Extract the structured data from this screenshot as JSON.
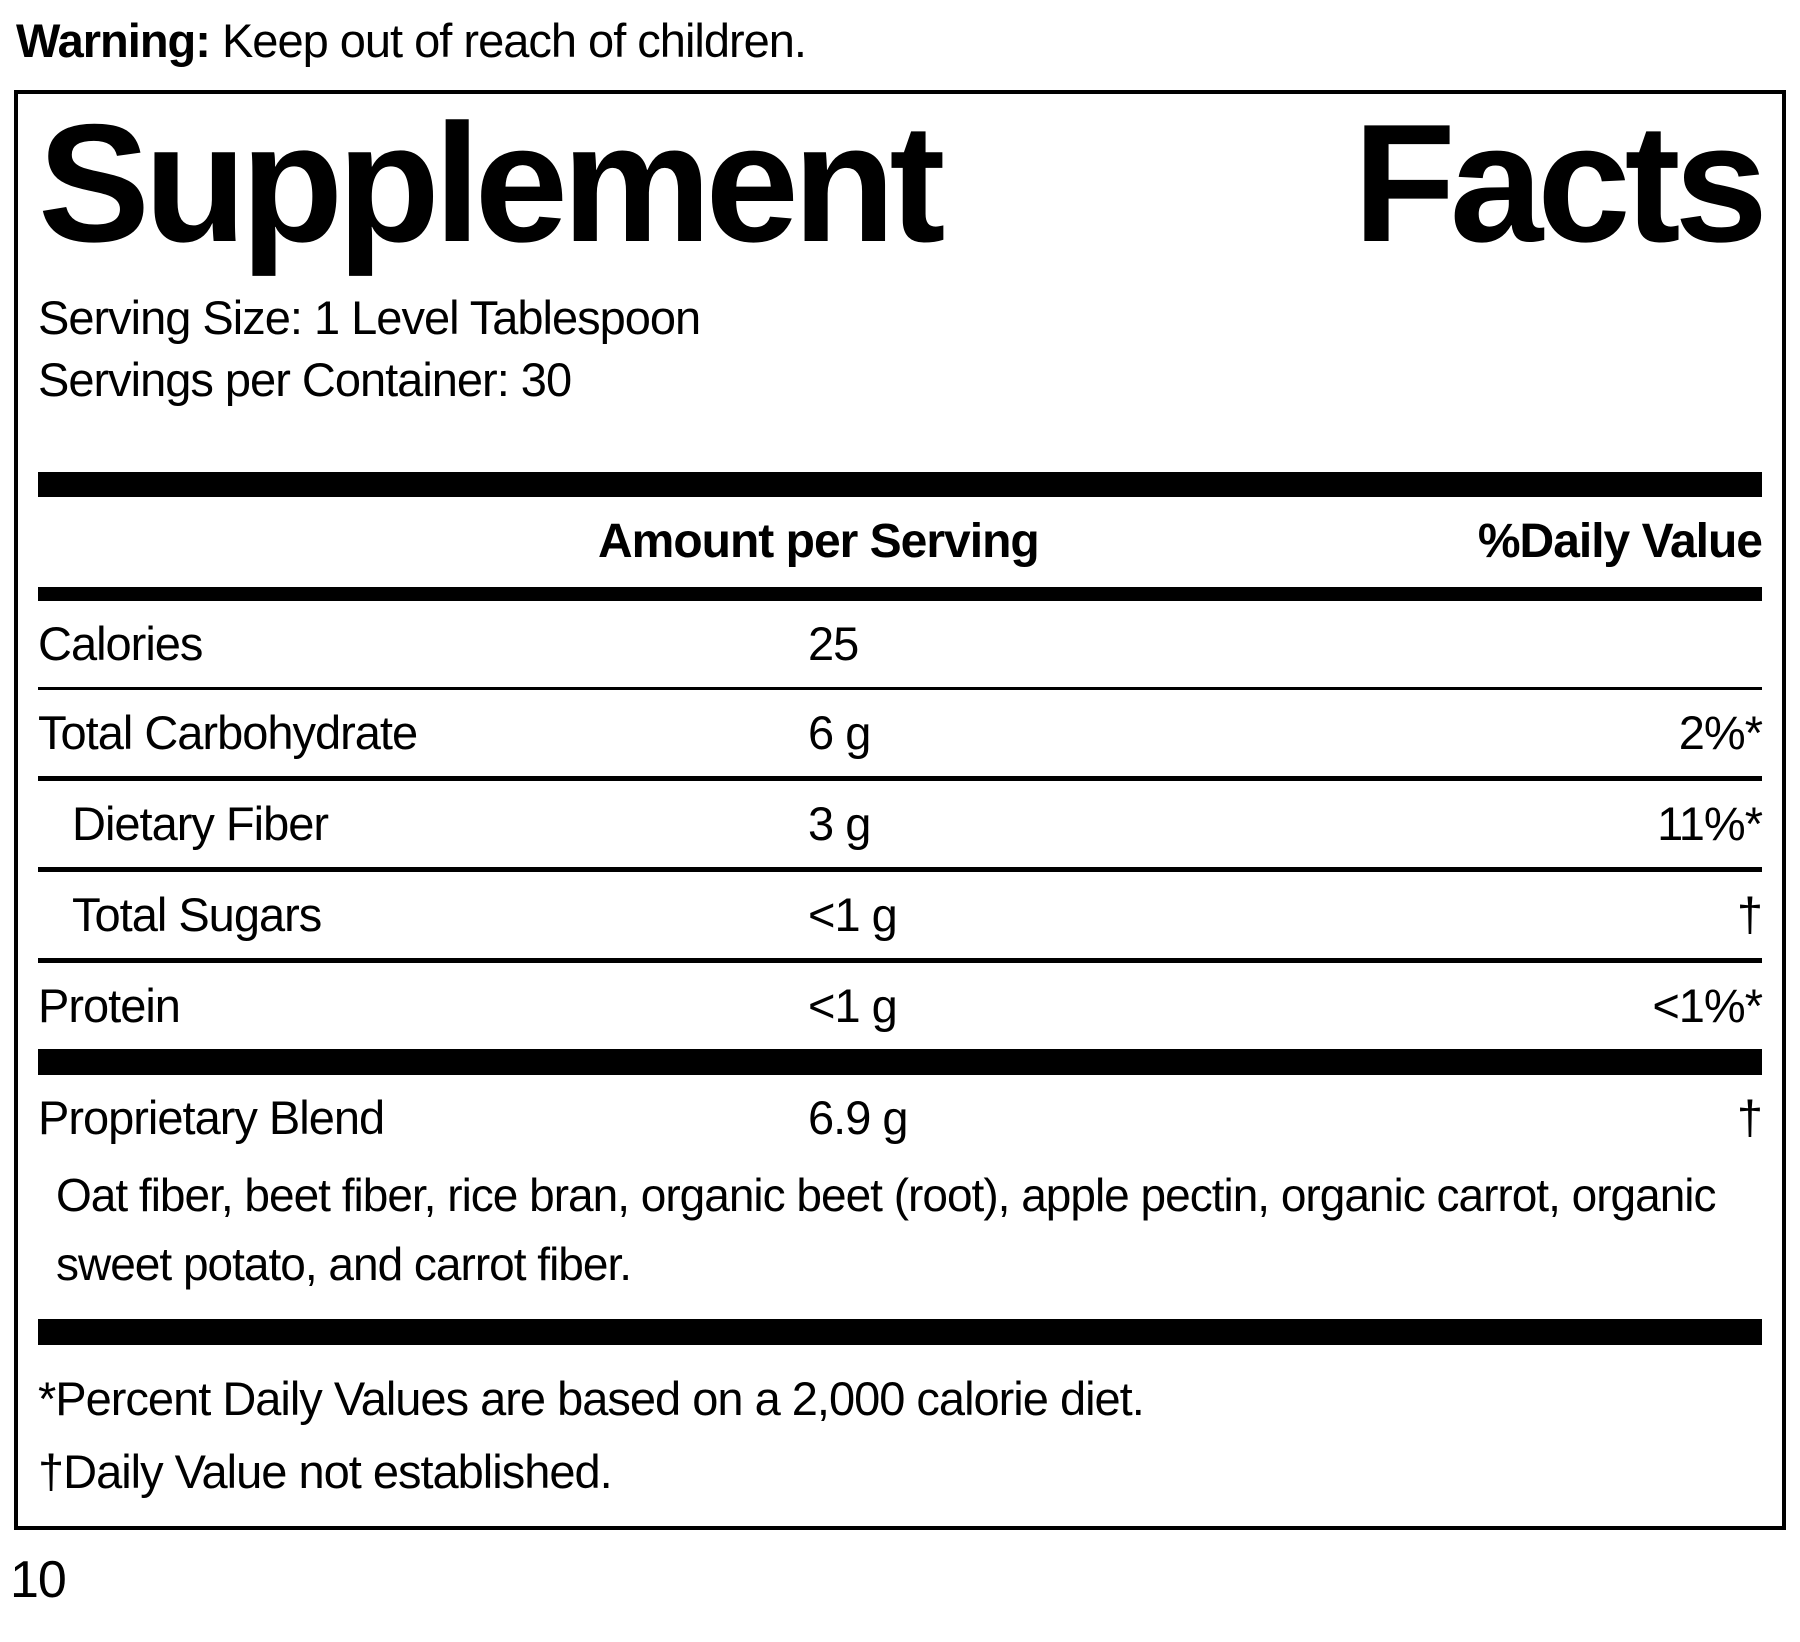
{
  "warning": {
    "label": "Warning:",
    "text": "Keep out of reach of children."
  },
  "panel": {
    "title_word1": "Supplement",
    "title_word2": "Facts",
    "serving_size": "Serving Size: 1 Level Tablespoon",
    "servings_per_container": "Servings per Container: 30",
    "columns": {
      "amount": "Amount per Serving",
      "daily_value": "%Daily Value"
    },
    "rows": [
      {
        "name": "Calories",
        "amount": "25",
        "dv": ""
      },
      {
        "name": "Total Carbohydrate",
        "amount": "6 g",
        "dv": "2%*"
      },
      {
        "name": "Dietary Fiber",
        "amount": "3 g",
        "dv": "11%*"
      },
      {
        "name": "Total Sugars",
        "amount": "<1 g",
        "dv": "†"
      },
      {
        "name": "Protein",
        "amount": "<1 g",
        "dv": "<1%*"
      }
    ],
    "proprietary_blend": {
      "name": "Proprietary Blend",
      "amount": "6.9 g",
      "dv": "†",
      "ingredients": "Oat fiber, beet fiber, rice bran, organic beet (root), apple pectin, organic carrot, organic sweet potato, and carrot fiber."
    },
    "footnotes": [
      "*Percent Daily Values are based on a 2,000 calorie diet.",
      "†Daily Value not established."
    ]
  },
  "page_number": "10",
  "colors": {
    "ink": "#000000",
    "background": "#ffffff"
  }
}
